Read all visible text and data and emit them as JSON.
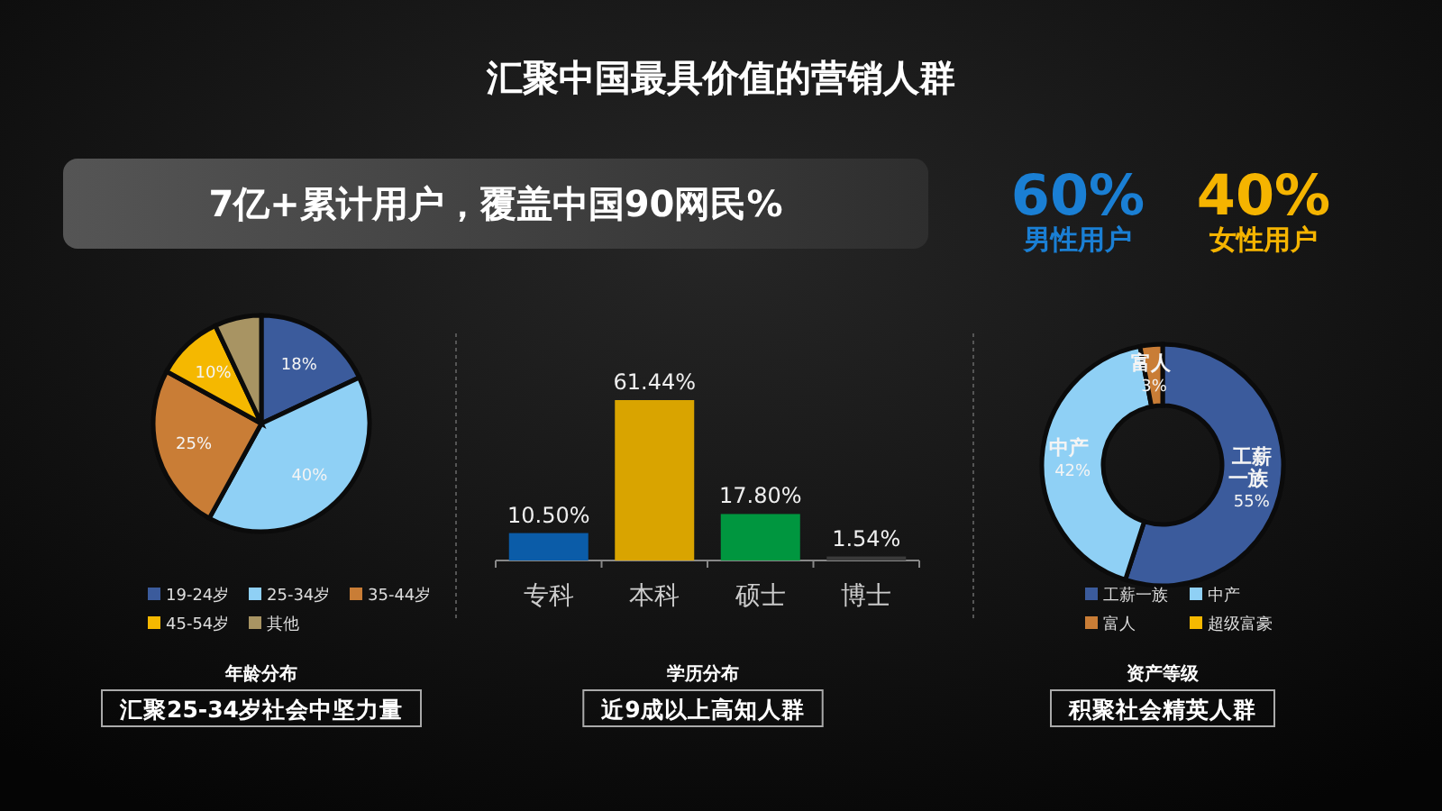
{
  "chart_data": [
    {
      "type": "other",
      "title": "汇聚中国最具价值的营销人群",
      "annotations": [
        "7亿+累计用户，覆盖中国90网民%"
      ],
      "categories": [
        "男性用户",
        "女性用户"
      ],
      "values": [
        60,
        40
      ],
      "value_labels": [
        "60%",
        "40%"
      ],
      "colors": [
        "#1a7fd4",
        "#f5b400"
      ]
    },
    {
      "type": "pie",
      "title": "年龄分布",
      "subtitle": "汇聚25-34岁社会中坚力量",
      "categories": [
        "19-24岁",
        "25-34岁",
        "35-44岁",
        "45-54岁",
        "其他"
      ],
      "values": [
        18,
        40,
        25,
        10,
        7
      ],
      "value_labels": [
        "18%",
        "40%",
        "25%",
        "10%",
        null
      ],
      "colors": [
        "#3b5b9c",
        "#8fd0f5",
        "#c97d36",
        "#f5b800",
        "#a89463"
      ],
      "legend": "bottom"
    },
    {
      "type": "bar",
      "title": "学历分布",
      "subtitle": "近9成以上高知人群",
      "categories": [
        "专科",
        "本科",
        "硕士",
        "博士"
      ],
      "values": [
        10.5,
        61.44,
        17.8,
        1.54
      ],
      "value_labels": [
        "10.50%",
        "61.44%",
        "17.80%",
        "1.54%"
      ],
      "colors": [
        "#0b5ca8",
        "#d9a400",
        "#00963f",
        "#3a3a3a"
      ]
    },
    {
      "type": "donut",
      "title": "资产等级",
      "subtitle": "积聚社会精英人群",
      "categories": [
        "工薪一族",
        "中产",
        "富人",
        "超级富豪"
      ],
      "values": [
        55,
        42,
        3,
        0
      ],
      "value_labels": [
        "工薪一族 55%",
        "中产 42%",
        "富人 3%",
        null
      ],
      "colors": [
        "#3b5b9c",
        "#8fd0f5",
        "#c97d36",
        "#f5b800"
      ],
      "legend": "bottom"
    }
  ]
}
